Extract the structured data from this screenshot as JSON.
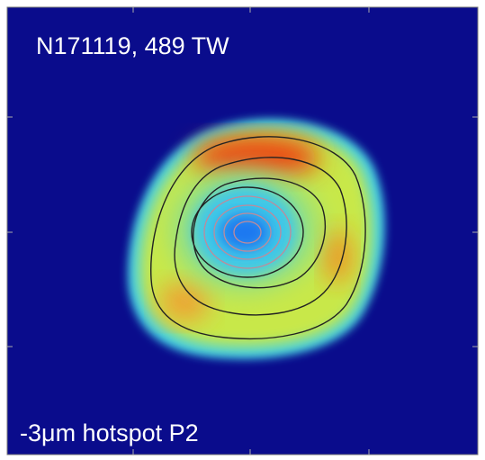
{
  "header": {
    "title": "N171119, 489 TW"
  },
  "caption": {
    "text": "-3μm hotspot P2"
  }
}
